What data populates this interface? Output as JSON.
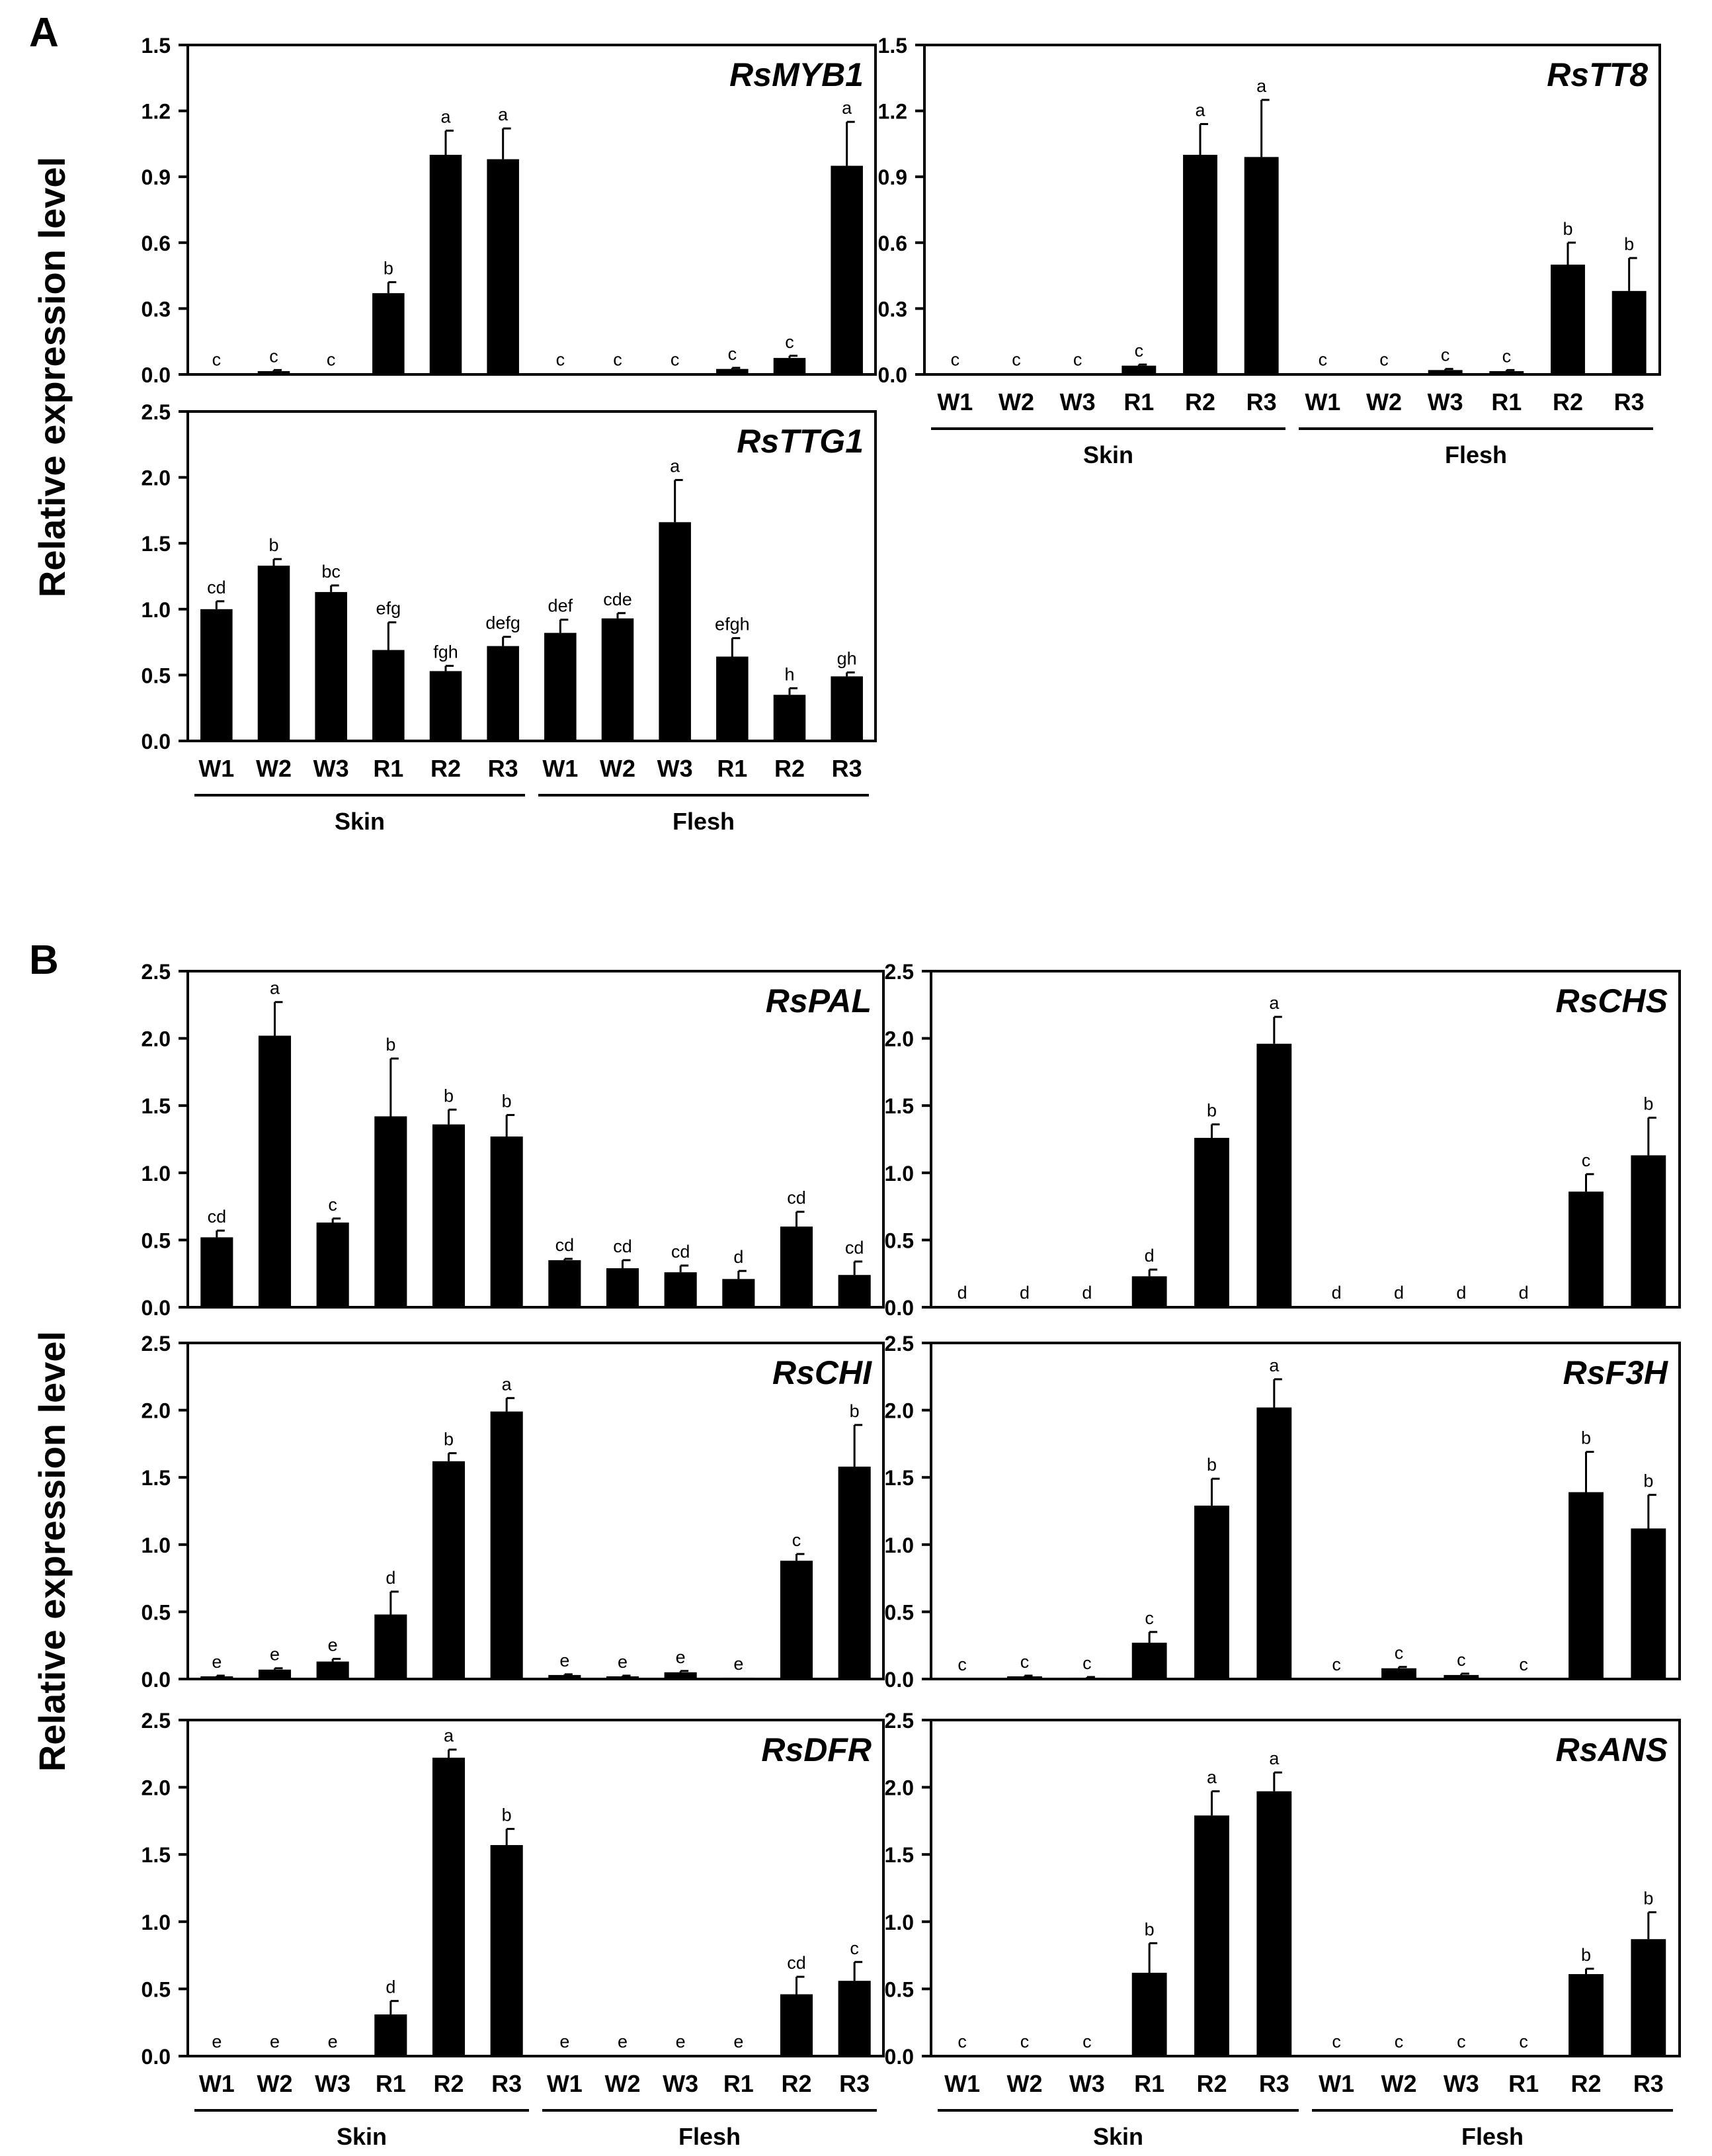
{
  "figure": {
    "panel_labels": [
      "A",
      "B"
    ],
    "ylabel": "Relative expression level",
    "categories": [
      "W1",
      "W2",
      "W3",
      "R1",
      "R2",
      "R3",
      "W1",
      "W2",
      "W3",
      "R1",
      "R2",
      "R3"
    ],
    "groups": [
      "Skin",
      "Flesh"
    ],
    "colors": {
      "bar": "#000000",
      "axis": "#000000",
      "text": "#000000",
      "background": "#ffffff"
    }
  },
  "chart_data": [
    {
      "type": "bar",
      "panel": "A",
      "title": "RsMYB1",
      "xlabel": "",
      "ylabel": "Relative expression level",
      "ylim": [
        0,
        1.5
      ],
      "yticks": [
        "0.0",
        "0.3",
        "0.6",
        "0.9",
        "1.2",
        "1.5"
      ],
      "categories": [
        "W1",
        "W2",
        "W3",
        "R1",
        "R2",
        "R3",
        "W1",
        "W2",
        "W3",
        "R1",
        "R2",
        "R3"
      ],
      "groups": [
        "Skin",
        "Flesh"
      ],
      "values": [
        0.005,
        0.015,
        0.005,
        0.37,
        1.0,
        0.98,
        0.005,
        0.005,
        0.005,
        0.025,
        0.075,
        0.95
      ],
      "errors": [
        0,
        0.005,
        0,
        0.05,
        0.11,
        0.14,
        0,
        0,
        0,
        0.005,
        0.01,
        0.2
      ],
      "labels": [
        "c",
        "c",
        "c",
        "b",
        "a",
        "a",
        "c",
        "c",
        "c",
        "c",
        "c",
        "a"
      ],
      "grid": false
    },
    {
      "type": "bar",
      "panel": "A",
      "title": "RsTT8",
      "xlabel": "",
      "ylabel": "",
      "ylim": [
        0,
        1.5
      ],
      "yticks": [
        "0.0",
        "0.3",
        "0.6",
        "0.9",
        "1.2",
        "1.5"
      ],
      "categories": [
        "W1",
        "W2",
        "W3",
        "R1",
        "R2",
        "R3",
        "W1",
        "W2",
        "W3",
        "R1",
        "R2",
        "R3"
      ],
      "groups": [
        "Skin",
        "Flesh"
      ],
      "values": [
        0.005,
        0.005,
        0.005,
        0.04,
        1.0,
        0.99,
        0.005,
        0.005,
        0.02,
        0.015,
        0.5,
        0.38
      ],
      "errors": [
        0,
        0,
        0,
        0.005,
        0.14,
        0.26,
        0,
        0,
        0.005,
        0.005,
        0.1,
        0.15
      ],
      "labels": [
        "c",
        "c",
        "c",
        "c",
        "a",
        "a",
        "c",
        "c",
        "c",
        "c",
        "b",
        "b"
      ],
      "grid": false
    },
    {
      "type": "bar",
      "panel": "A",
      "title": "RsTTG1",
      "xlabel": "",
      "ylabel": "",
      "ylim": [
        0,
        2.5
      ],
      "yticks": [
        "0.0",
        "0.5",
        "1.0",
        "1.5",
        "2.0",
        "2.5"
      ],
      "categories": [
        "W1",
        "W2",
        "W3",
        "R1",
        "R2",
        "R3",
        "W1",
        "W2",
        "W3",
        "R1",
        "R2",
        "R3"
      ],
      "groups": [
        "Skin",
        "Flesh"
      ],
      "values": [
        1.0,
        1.33,
        1.13,
        0.69,
        0.53,
        0.72,
        0.82,
        0.93,
        1.66,
        0.64,
        0.35,
        0.49
      ],
      "errors": [
        0.06,
        0.05,
        0.05,
        0.21,
        0.04,
        0.07,
        0.1,
        0.04,
        0.32,
        0.14,
        0.05,
        0.03
      ],
      "labels": [
        "cd",
        "b",
        "bc",
        "efg",
        "fgh",
        "defg",
        "def",
        "cde",
        "a",
        "efgh",
        "h",
        "gh"
      ],
      "grid": false
    },
    {
      "type": "bar",
      "panel": "B",
      "title": "RsPAL",
      "xlabel": "",
      "ylabel": "Relative expression level",
      "ylim": [
        0,
        2.5
      ],
      "yticks": [
        "0.0",
        "0.5",
        "1.0",
        "1.5",
        "2.0",
        "2.5"
      ],
      "categories": [
        "W1",
        "W2",
        "W3",
        "R1",
        "R2",
        "R3",
        "W1",
        "W2",
        "W3",
        "R1",
        "R2",
        "R3"
      ],
      "groups": [
        "Skin",
        "Flesh"
      ],
      "values": [
        0.52,
        2.02,
        0.63,
        1.42,
        1.36,
        1.27,
        0.35,
        0.29,
        0.26,
        0.21,
        0.6,
        0.24
      ],
      "errors": [
        0.05,
        0.25,
        0.03,
        0.43,
        0.11,
        0.16,
        0.01,
        0.06,
        0.05,
        0.06,
        0.11,
        0.1
      ],
      "labels": [
        "cd",
        "a",
        "c",
        "b",
        "b",
        "b",
        "cd",
        "cd",
        "cd",
        "d",
        "cd",
        "cd"
      ],
      "grid": false
    },
    {
      "type": "bar",
      "panel": "B",
      "title": "RsCHS",
      "xlabel": "",
      "ylabel": "",
      "ylim": [
        0,
        2.5
      ],
      "yticks": [
        "0.0",
        "0.5",
        "1.0",
        "1.5",
        "2.0",
        "2.5"
      ],
      "categories": [
        "W1",
        "W2",
        "W3",
        "R1",
        "R2",
        "R3",
        "W1",
        "W2",
        "W3",
        "R1",
        "R2",
        "R3"
      ],
      "groups": [
        "Skin",
        "Flesh"
      ],
      "values": [
        0.005,
        0.005,
        0.005,
        0.23,
        1.26,
        1.96,
        0.005,
        0.005,
        0.005,
        0.005,
        0.86,
        1.13
      ],
      "errors": [
        0,
        0,
        0,
        0.05,
        0.1,
        0.2,
        0,
        0,
        0,
        0,
        0.13,
        0.28
      ],
      "labels": [
        "d",
        "d",
        "d",
        "d",
        "b",
        "a",
        "d",
        "d",
        "d",
        "d",
        "c",
        "b"
      ],
      "grid": false
    },
    {
      "type": "bar",
      "panel": "B",
      "title": "RsCHI",
      "xlabel": "",
      "ylabel": "",
      "ylim": [
        0,
        2.5
      ],
      "yticks": [
        "0.0",
        "0.5",
        "1.0",
        "1.5",
        "2.0",
        "2.5"
      ],
      "categories": [
        "W1",
        "W2",
        "W3",
        "R1",
        "R2",
        "R3",
        "W1",
        "W2",
        "W3",
        "R1",
        "R2",
        "R3"
      ],
      "groups": [
        "Skin",
        "Flesh"
      ],
      "values": [
        0.02,
        0.07,
        0.13,
        0.48,
        1.62,
        1.99,
        0.03,
        0.02,
        0.05,
        0.01,
        0.88,
        1.58
      ],
      "errors": [
        0.005,
        0.01,
        0.02,
        0.17,
        0.06,
        0.1,
        0.005,
        0.005,
        0.01,
        0,
        0.05,
        0.31
      ],
      "labels": [
        "e",
        "e",
        "e",
        "d",
        "b",
        "a",
        "e",
        "e",
        "e",
        "e",
        "c",
        "b"
      ],
      "grid": false
    },
    {
      "type": "bar",
      "panel": "B",
      "title": "RsF3H",
      "xlabel": "",
      "ylabel": "",
      "ylim": [
        0,
        2.5
      ],
      "yticks": [
        "0.0",
        "0.5",
        "1.0",
        "1.5",
        "2.0",
        "2.5"
      ],
      "categories": [
        "W1",
        "W2",
        "W3",
        "R1",
        "R2",
        "R3",
        "W1",
        "W2",
        "W3",
        "R1",
        "R2",
        "R3"
      ],
      "groups": [
        "Skin",
        "Flesh"
      ],
      "values": [
        0.005,
        0.02,
        0.01,
        0.27,
        1.29,
        2.02,
        0.005,
        0.08,
        0.03,
        0.005,
        1.39,
        1.12
      ],
      "errors": [
        0,
        0.005,
        0.005,
        0.08,
        0.2,
        0.21,
        0,
        0.01,
        0.01,
        0,
        0.3,
        0.25
      ],
      "labels": [
        "c",
        "c",
        "c",
        "c",
        "b",
        "a",
        "c",
        "c",
        "c",
        "c",
        "b",
        "b"
      ],
      "grid": false
    },
    {
      "type": "bar",
      "panel": "B",
      "title": "RsDFR",
      "xlabel": "",
      "ylabel": "",
      "ylim": [
        0,
        2.5
      ],
      "yticks": [
        "0.0",
        "0.5",
        "1.0",
        "1.5",
        "2.0",
        "2.5"
      ],
      "categories": [
        "W1",
        "W2",
        "W3",
        "R1",
        "R2",
        "R3",
        "W1",
        "W2",
        "W3",
        "R1",
        "R2",
        "R3"
      ],
      "groups": [
        "Skin",
        "Flesh"
      ],
      "values": [
        0.005,
        0.005,
        0.005,
        0.31,
        2.22,
        1.57,
        0.005,
        0.005,
        0.005,
        0.005,
        0.46,
        0.56
      ],
      "errors": [
        0,
        0,
        0,
        0.1,
        0.06,
        0.12,
        0,
        0,
        0,
        0,
        0.13,
        0.14
      ],
      "labels": [
        "e",
        "e",
        "e",
        "d",
        "a",
        "b",
        "e",
        "e",
        "e",
        "e",
        "cd",
        "c"
      ],
      "grid": false
    },
    {
      "type": "bar",
      "panel": "B",
      "title": "RsANS",
      "xlabel": "",
      "ylabel": "",
      "ylim": [
        0,
        2.5
      ],
      "yticks": [
        "0.0",
        "0.5",
        "1.0",
        "1.5",
        "2.0",
        "2.5"
      ],
      "categories": [
        "W1",
        "W2",
        "W3",
        "R1",
        "R2",
        "R3",
        "W1",
        "W2",
        "W3",
        "R1",
        "R2",
        "R3"
      ],
      "groups": [
        "Skin",
        "Flesh"
      ],
      "values": [
        0.005,
        0.005,
        0.005,
        0.62,
        1.79,
        1.97,
        0.005,
        0.005,
        0.005,
        0.005,
        0.61,
        0.87
      ],
      "errors": [
        0,
        0,
        0,
        0.22,
        0.18,
        0.14,
        0,
        0,
        0,
        0,
        0.04,
        0.2
      ],
      "labels": [
        "c",
        "c",
        "c",
        "b",
        "a",
        "a",
        "c",
        "c",
        "c",
        "c",
        "b",
        "b"
      ],
      "grid": false
    }
  ]
}
